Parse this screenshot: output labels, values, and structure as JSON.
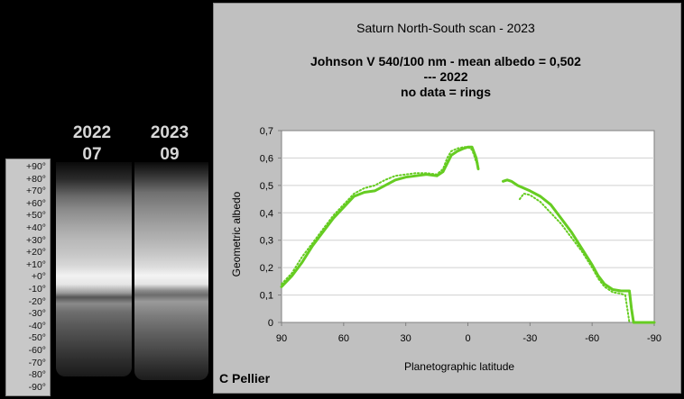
{
  "strips": [
    {
      "year": "2022",
      "month": "07"
    },
    {
      "year": "2023",
      "month": "09"
    }
  ],
  "latitude_scale": [
    "+90°",
    "+80°",
    "+70°",
    "+60°",
    "+50°",
    "+40°",
    "+30°",
    "+20°",
    "+10°",
    "+0°",
    "-10°",
    "-20°",
    "-30°",
    "-40°",
    "-50°",
    "-60°",
    "-70°",
    "-80°",
    "-90°"
  ],
  "credit": "C Pellier",
  "chart_data": {
    "type": "line",
    "title": "Saturn North-South scan - 2023",
    "subtitle_lines": [
      "Johnson V 540/100 nm - mean albedo = 0,502",
      "--- 2022",
      "no data = rings"
    ],
    "xlabel": "Planetographic latitude",
    "ylabel": "Geometric albedo",
    "xlim": [
      90,
      -90
    ],
    "ylim": [
      0,
      0.7
    ],
    "xticks": [
      90,
      60,
      30,
      0,
      -30,
      -60,
      -90
    ],
    "xtick_labels": [
      "90",
      "60",
      "30",
      "0",
      "-30",
      "-60",
      "-90"
    ],
    "yticks": [
      0,
      0.1,
      0.2,
      0.3,
      0.4,
      0.5,
      0.6,
      0.7
    ],
    "ytick_labels": [
      "0",
      "0,1",
      "0,2",
      "0,3",
      "0,4",
      "0,5",
      "0,6",
      "0,7"
    ],
    "grid": true,
    "color": "#66cc22",
    "series": [
      {
        "style": "solid",
        "segments": [
          [
            [
              90,
              0.13
            ],
            [
              85,
              0.17
            ],
            [
              80,
              0.22
            ],
            [
              75,
              0.28
            ],
            [
              70,
              0.33
            ],
            [
              65,
              0.38
            ],
            [
              60,
              0.42
            ],
            [
              55,
              0.46
            ],
            [
              50,
              0.475
            ],
            [
              45,
              0.48
            ],
            [
              40,
              0.5
            ],
            [
              35,
              0.52
            ],
            [
              30,
              0.53
            ],
            [
              25,
              0.535
            ],
            [
              20,
              0.54
            ],
            [
              15,
              0.535
            ],
            [
              12,
              0.55
            ],
            [
              10,
              0.58
            ],
            [
              8,
              0.61
            ],
            [
              5,
              0.625
            ],
            [
              2,
              0.635
            ],
            [
              0,
              0.64
            ],
            [
              -2,
              0.64
            ],
            [
              -3,
              0.62
            ],
            [
              -4,
              0.6
            ],
            [
              -5,
              0.56
            ]
          ],
          [
            [
              -17,
              0.515
            ],
            [
              -19,
              0.52
            ],
            [
              -21,
              0.515
            ],
            [
              -24,
              0.5
            ],
            [
              -30,
              0.48
            ],
            [
              -35,
              0.46
            ],
            [
              -40,
              0.43
            ],
            [
              -45,
              0.38
            ],
            [
              -50,
              0.33
            ],
            [
              -55,
              0.27
            ],
            [
              -60,
              0.21
            ],
            [
              -63,
              0.17
            ],
            [
              -66,
              0.14
            ],
            [
              -70,
              0.12
            ],
            [
              -74,
              0.115
            ],
            [
              -78,
              0.115
            ],
            [
              -79,
              0.05
            ],
            [
              -80,
              0.0
            ],
            [
              -90,
              0.0
            ]
          ]
        ]
      },
      {
        "name": "2022",
        "style": "dotted",
        "segments": [
          [
            [
              90,
              0.14
            ],
            [
              85,
              0.18
            ],
            [
              80,
              0.24
            ],
            [
              75,
              0.29
            ],
            [
              70,
              0.34
            ],
            [
              65,
              0.39
            ],
            [
              60,
              0.43
            ],
            [
              55,
              0.47
            ],
            [
              50,
              0.49
            ],
            [
              45,
              0.5
            ],
            [
              40,
              0.52
            ],
            [
              35,
              0.535
            ],
            [
              30,
              0.54
            ],
            [
              25,
              0.545
            ],
            [
              20,
              0.545
            ],
            [
              15,
              0.54
            ],
            [
              12,
              0.56
            ],
            [
              10,
              0.6
            ],
            [
              8,
              0.625
            ],
            [
              5,
              0.635
            ],
            [
              2,
              0.64
            ],
            [
              0,
              0.64
            ],
            [
              -2,
              0.63
            ],
            [
              -3,
              0.61
            ],
            [
              -4,
              0.585
            ],
            [
              -5,
              0.58
            ]
          ],
          [
            [
              -25,
              0.45
            ],
            [
              -27,
              0.47
            ],
            [
              -30,
              0.465
            ],
            [
              -35,
              0.44
            ],
            [
              -40,
              0.4
            ],
            [
              -45,
              0.36
            ],
            [
              -50,
              0.31
            ],
            [
              -55,
              0.26
            ],
            [
              -60,
              0.2
            ],
            [
              -63,
              0.16
            ],
            [
              -66,
              0.13
            ],
            [
              -70,
              0.11
            ],
            [
              -74,
              0.105
            ],
            [
              -76,
              0.1
            ],
            [
              -77,
              0.05
            ],
            [
              -78,
              0.0
            ]
          ]
        ]
      }
    ]
  }
}
